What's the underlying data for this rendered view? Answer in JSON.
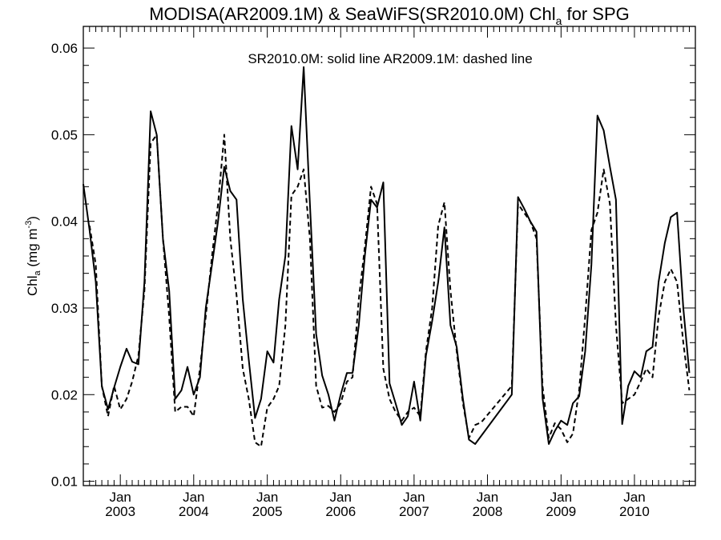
{
  "chart_data": {
    "type": "line",
    "title": {
      "main": "MODISA(AR2009.1M) & SeaWiFS(SR2010.0M)  Chl",
      "sub": "a",
      "tail": " for SPG"
    },
    "annotation": "SR2010.0M: solid line   AR2009.1M: dashed line",
    "ylabel": {
      "base": "Chl",
      "sub": "a",
      "unit": " (mg m",
      "sup": "-3",
      "close": ")"
    },
    "ylim": [
      0.0095,
      0.0625
    ],
    "xlim": [
      "2002-07-01",
      "2010-10-31"
    ],
    "y_ticks": [
      "0.01",
      "0.02",
      "0.03",
      "0.04",
      "0.05",
      "0.06"
    ],
    "x_tick_month": "Jan",
    "x_tick_years": [
      "2003",
      "2004",
      "2005",
      "2006",
      "2007",
      "2008",
      "2009",
      "2010"
    ],
    "series": [
      {
        "name": "SR2010.0M",
        "style": "solid",
        "color": "#000000",
        "points": [
          [
            "2002-07-01",
            0.0443
          ],
          [
            "2002-08-01",
            0.039
          ],
          [
            "2002-09-01",
            0.033
          ],
          [
            "2002-10-01",
            0.021
          ],
          [
            "2002-11-01",
            0.0183
          ],
          [
            "2002-12-01",
            0.0208
          ],
          [
            "2003-01-01",
            0.0232
          ],
          [
            "2003-02-01",
            0.0253
          ],
          [
            "2003-03-01",
            0.0238
          ],
          [
            "2003-04-01",
            0.0235
          ],
          [
            "2003-05-01",
            0.033
          ],
          [
            "2003-06-01",
            0.0527
          ],
          [
            "2003-07-01",
            0.05
          ],
          [
            "2003-08-01",
            0.038
          ],
          [
            "2003-09-01",
            0.032
          ],
          [
            "2003-10-01",
            0.0195
          ],
          [
            "2003-11-01",
            0.0205
          ],
          [
            "2003-12-01",
            0.0232
          ],
          [
            "2004-01-01",
            0.02
          ],
          [
            "2004-02-01",
            0.022
          ],
          [
            "2004-03-01",
            0.03
          ],
          [
            "2004-04-01",
            0.035
          ],
          [
            "2004-05-01",
            0.04
          ],
          [
            "2004-06-01",
            0.0463
          ],
          [
            "2004-07-01",
            0.0435
          ],
          [
            "2004-08-01",
            0.0425
          ],
          [
            "2004-09-01",
            0.031
          ],
          [
            "2004-10-01",
            0.024
          ],
          [
            "2004-11-01",
            0.0173
          ],
          [
            "2004-12-01",
            0.0195
          ],
          [
            "2005-01-01",
            0.025
          ],
          [
            "2005-02-01",
            0.0237
          ],
          [
            "2005-03-01",
            0.031
          ],
          [
            "2005-04-01",
            0.036
          ],
          [
            "2005-05-01",
            0.051
          ],
          [
            "2005-06-01",
            0.046
          ],
          [
            "2005-07-01",
            0.0578
          ],
          [
            "2005-08-01",
            0.042
          ],
          [
            "2005-09-01",
            0.027
          ],
          [
            "2005-10-01",
            0.0222
          ],
          [
            "2005-11-01",
            0.02
          ],
          [
            "2005-12-01",
            0.017
          ],
          [
            "2006-01-01",
            0.02
          ],
          [
            "2006-02-01",
            0.0225
          ],
          [
            "2006-03-01",
            0.0225
          ],
          [
            "2006-04-01",
            0.028
          ],
          [
            "2006-05-01",
            0.036
          ],
          [
            "2006-06-01",
            0.0425
          ],
          [
            "2006-07-01",
            0.0416
          ],
          [
            "2006-08-01",
            0.0445
          ],
          [
            "2006-09-01",
            0.0213
          ],
          [
            "2006-10-01",
            0.019
          ],
          [
            "2006-11-01",
            0.0165
          ],
          [
            "2006-12-01",
            0.0175
          ],
          [
            "2007-01-01",
            0.0215
          ],
          [
            "2007-02-01",
            0.017
          ],
          [
            "2007-03-01",
            0.0245
          ],
          [
            "2007-04-01",
            0.0285
          ],
          [
            "2007-05-01",
            0.033
          ],
          [
            "2007-06-01",
            0.0393
          ],
          [
            "2007-07-01",
            0.028
          ],
          [
            "2007-08-01",
            0.0255
          ],
          [
            "2007-09-01",
            0.0195
          ],
          [
            "2007-10-01",
            0.0148
          ],
          [
            "2007-11-01",
            0.0143
          ],
          [
            "2008-05-01",
            0.02
          ],
          [
            "2008-06-01",
            0.0428
          ],
          [
            "2008-07-01",
            0.0415
          ],
          [
            "2008-08-01",
            0.04
          ],
          [
            "2008-09-01",
            0.0388
          ],
          [
            "2008-10-01",
            0.0196
          ],
          [
            "2008-11-01",
            0.0143
          ],
          [
            "2008-12-01",
            0.0158
          ],
          [
            "2009-01-01",
            0.017
          ],
          [
            "2009-02-01",
            0.0165
          ],
          [
            "2009-03-01",
            0.019
          ],
          [
            "2009-04-01",
            0.0198
          ],
          [
            "2009-05-01",
            0.025
          ],
          [
            "2009-06-01",
            0.035
          ],
          [
            "2009-07-01",
            0.0522
          ],
          [
            "2009-08-01",
            0.0505
          ],
          [
            "2009-09-01",
            0.0463
          ],
          [
            "2009-10-01",
            0.0425
          ],
          [
            "2009-11-01",
            0.0166
          ],
          [
            "2009-12-01",
            0.021
          ],
          [
            "2010-01-01",
            0.0227
          ],
          [
            "2010-02-01",
            0.022
          ],
          [
            "2010-03-01",
            0.025
          ],
          [
            "2010-04-01",
            0.0255
          ],
          [
            "2010-05-01",
            0.033
          ],
          [
            "2010-06-01",
            0.0375
          ],
          [
            "2010-07-01",
            0.0405
          ],
          [
            "2010-08-01",
            0.041
          ],
          [
            "2010-09-01",
            0.03
          ],
          [
            "2010-10-01",
            0.0225
          ]
        ]
      },
      {
        "name": "AR2009.1M",
        "style": "dashed",
        "color": "#000000",
        "points": [
          [
            "2002-08-01",
            0.0395
          ],
          [
            "2002-09-01",
            0.035
          ],
          [
            "2002-10-01",
            0.021
          ],
          [
            "2002-11-01",
            0.0175
          ],
          [
            "2002-12-01",
            0.021
          ],
          [
            "2003-01-01",
            0.0183
          ],
          [
            "2003-02-01",
            0.0195
          ],
          [
            "2003-03-01",
            0.0215
          ],
          [
            "2003-04-01",
            0.0245
          ],
          [
            "2003-05-01",
            0.032
          ],
          [
            "2003-06-01",
            0.049
          ],
          [
            "2003-07-01",
            0.05
          ],
          [
            "2003-08-01",
            0.038
          ],
          [
            "2003-09-01",
            0.029
          ],
          [
            "2003-10-01",
            0.018
          ],
          [
            "2003-11-01",
            0.0186
          ],
          [
            "2003-12-01",
            0.0186
          ],
          [
            "2004-01-01",
            0.0175
          ],
          [
            "2004-02-01",
            0.023
          ],
          [
            "2004-03-01",
            0.029
          ],
          [
            "2004-04-01",
            0.036
          ],
          [
            "2004-05-01",
            0.042
          ],
          [
            "2004-06-01",
            0.05
          ],
          [
            "2004-07-01",
            0.038
          ],
          [
            "2004-08-01",
            0.0315
          ],
          [
            "2004-09-01",
            0.023
          ],
          [
            "2004-10-01",
            0.0195
          ],
          [
            "2004-11-01",
            0.0145
          ],
          [
            "2004-12-01",
            0.014
          ],
          [
            "2005-01-01",
            0.0185
          ],
          [
            "2005-02-01",
            0.0195
          ],
          [
            "2005-03-01",
            0.021
          ],
          [
            "2005-04-01",
            0.028
          ],
          [
            "2005-05-01",
            0.043
          ],
          [
            "2005-06-01",
            0.044
          ],
          [
            "2005-07-01",
            0.046
          ],
          [
            "2005-08-01",
            0.038
          ],
          [
            "2005-09-01",
            0.021
          ],
          [
            "2005-10-01",
            0.0185
          ],
          [
            "2005-11-01",
            0.0187
          ],
          [
            "2005-12-01",
            0.018
          ],
          [
            "2006-01-01",
            0.019
          ],
          [
            "2006-02-01",
            0.0215
          ],
          [
            "2006-03-01",
            0.022
          ],
          [
            "2006-04-01",
            0.031
          ],
          [
            "2006-05-01",
            0.037
          ],
          [
            "2006-06-01",
            0.044
          ],
          [
            "2006-07-01",
            0.042
          ],
          [
            "2006-08-01",
            0.023
          ],
          [
            "2006-09-01",
            0.0195
          ],
          [
            "2006-10-01",
            0.018
          ],
          [
            "2006-11-01",
            0.017
          ],
          [
            "2006-12-01",
            0.018
          ],
          [
            "2007-01-01",
            0.0185
          ],
          [
            "2007-02-01",
            0.0175
          ],
          [
            "2007-03-01",
            0.025
          ],
          [
            "2007-04-01",
            0.03
          ],
          [
            "2007-05-01",
            0.0395
          ],
          [
            "2007-06-01",
            0.0422
          ],
          [
            "2007-07-01",
            0.032
          ],
          [
            "2007-08-01",
            0.025
          ],
          [
            "2007-09-01",
            0.019
          ],
          [
            "2007-10-01",
            0.015
          ],
          [
            "2007-11-01",
            0.0165
          ],
          [
            "2007-12-01",
            0.0168
          ],
          [
            "2008-05-01",
            0.021
          ],
          [
            "2008-06-01",
            0.042
          ],
          [
            "2008-07-01",
            0.041
          ],
          [
            "2008-08-01",
            0.04
          ],
          [
            "2008-09-01",
            0.038
          ],
          [
            "2008-10-01",
            0.021
          ],
          [
            "2008-11-01",
            0.015
          ],
          [
            "2008-12-01",
            0.0167
          ],
          [
            "2009-01-01",
            0.016
          ],
          [
            "2009-02-01",
            0.0145
          ],
          [
            "2009-03-01",
            0.0155
          ],
          [
            "2009-04-01",
            0.0205
          ],
          [
            "2009-05-01",
            0.029
          ],
          [
            "2009-06-01",
            0.039
          ],
          [
            "2009-07-01",
            0.041
          ],
          [
            "2009-08-01",
            0.046
          ],
          [
            "2009-09-01",
            0.042
          ],
          [
            "2009-10-01",
            0.028
          ],
          [
            "2009-11-01",
            0.019
          ],
          [
            "2009-12-01",
            0.0195
          ],
          [
            "2010-01-01",
            0.02
          ],
          [
            "2010-02-01",
            0.0215
          ],
          [
            "2010-03-01",
            0.023
          ],
          [
            "2010-04-01",
            0.022
          ],
          [
            "2010-05-01",
            0.029
          ],
          [
            "2010-06-01",
            0.033
          ],
          [
            "2010-07-01",
            0.0345
          ],
          [
            "2010-08-01",
            0.033
          ],
          [
            "2010-09-01",
            0.026
          ],
          [
            "2010-10-01",
            0.0205
          ]
        ]
      }
    ]
  }
}
